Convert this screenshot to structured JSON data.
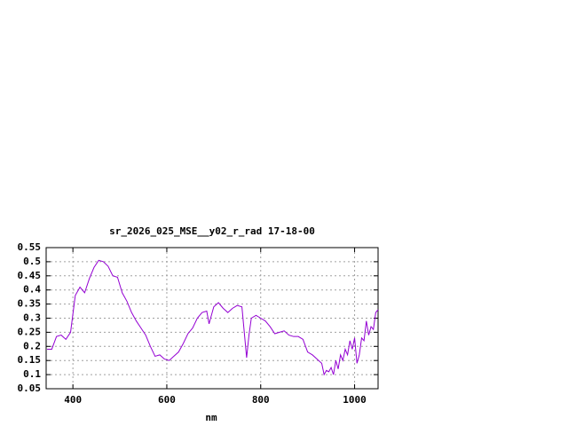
{
  "chart_data": {
    "type": "line",
    "title": "sr_2026_025_MSE__y02_r_rad 17-18-00",
    "x_label": "nm",
    "x": [
      345,
      355,
      365,
      375,
      385,
      395,
      405,
      415,
      425,
      435,
      445,
      455,
      465,
      475,
      485,
      495,
      505,
      515,
      525,
      535,
      545,
      555,
      565,
      575,
      585,
      595,
      605,
      615,
      625,
      635,
      645,
      655,
      665,
      675,
      685,
      690,
      700,
      710,
      720,
      730,
      740,
      750,
      760,
      765,
      770,
      775,
      780,
      790,
      800,
      810,
      820,
      830,
      840,
      850,
      860,
      870,
      880,
      890,
      900,
      910,
      920,
      930,
      935,
      940,
      945,
      950,
      955,
      960,
      965,
      970,
      975,
      980,
      985,
      990,
      995,
      1000,
      1005,
      1010,
      1015,
      1020,
      1025,
      1030,
      1035,
      1040,
      1045,
      1050
    ],
    "series": [
      {
        "color": "#9400d3",
        "values": [
          0.19,
          0.19,
          0.235,
          0.24,
          0.225,
          0.25,
          0.38,
          0.41,
          0.39,
          0.44,
          0.48,
          0.505,
          0.5,
          0.484,
          0.45,
          0.445,
          0.39,
          0.36,
          0.32,
          0.29,
          0.265,
          0.24,
          0.2,
          0.165,
          0.17,
          0.155,
          0.15,
          0.165,
          0.18,
          0.21,
          0.245,
          0.265,
          0.3,
          0.32,
          0.325,
          0.28,
          0.34,
          0.355,
          0.335,
          0.32,
          0.335,
          0.345,
          0.34,
          0.25,
          0.16,
          0.24,
          0.3,
          0.31,
          0.3,
          0.29,
          0.27,
          0.245,
          0.25,
          0.255,
          0.24,
          0.235,
          0.235,
          0.225,
          0.18,
          0.17,
          0.155,
          0.14,
          0.1,
          0.115,
          0.11,
          0.125,
          0.1,
          0.15,
          0.12,
          0.17,
          0.15,
          0.19,
          0.17,
          0.22,
          0.19,
          0.23,
          0.14,
          0.17,
          0.23,
          0.22,
          0.29,
          0.24,
          0.27,
          0.26,
          0.32,
          0.33
        ]
      }
    ],
    "xlim": [
      343,
      1050
    ],
    "ylim": [
      0.05,
      0.55
    ],
    "xticks": [
      400,
      600,
      800,
      1000
    ],
    "yticks": [
      0.05,
      0.1,
      0.15,
      0.2,
      0.25,
      0.3,
      0.35,
      0.4,
      0.45,
      0.5,
      0.55
    ],
    "grid": true
  }
}
